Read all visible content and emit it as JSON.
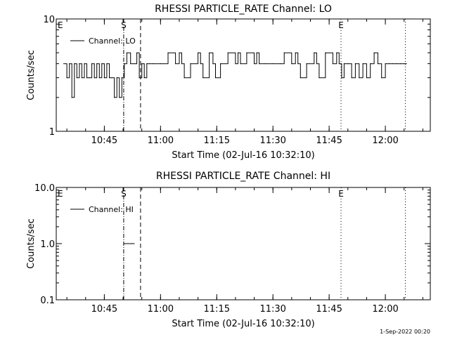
{
  "footer": {
    "stamp": "1-Sep-2022 00:20"
  },
  "chart_data": [
    {
      "type": "line",
      "title": "RHESSI PARTICLE_RATE Channel: LO",
      "xlabel": "Start Time (02-Jul-16 10:32:10)",
      "ylabel": "Counts/sec",
      "y_scale": "log",
      "ylim": [
        1,
        10
      ],
      "ytick_labels": [
        "1",
        "10"
      ],
      "xlim": [
        "10:32:10",
        "12:12:00"
      ],
      "xtick_labels": [
        "10:45",
        "11:00",
        "11:15",
        "11:30",
        "11:45",
        "12:00"
      ],
      "legend": {
        "entries": [
          "Channel: LO"
        ],
        "placement": "top-left"
      },
      "markers": [
        {
          "label": "E",
          "time": "10:32:10",
          "style": "none"
        },
        {
          "label": "S",
          "time": "10:50:10",
          "style": "dash-dot"
        },
        {
          "label": "",
          "time": "10:54:40",
          "style": "dashed"
        },
        {
          "label": "E",
          "time": "11:48:10",
          "style": "dotted"
        },
        {
          "label": "",
          "time": "12:05:20",
          "style": "dotted"
        }
      ],
      "series": [
        {
          "name": "Channel: LO",
          "x": [
            "10:34:10",
            "10:35:00",
            "10:35:40",
            "10:36:20",
            "10:37:00",
            "10:37:40",
            "10:38:20",
            "10:39:00",
            "10:39:40",
            "10:40:20",
            "10:41:00",
            "10:41:40",
            "10:42:20",
            "10:43:00",
            "10:43:40",
            "10:44:20",
            "10:45:00",
            "10:45:40",
            "10:46:20",
            "10:47:00",
            "10:47:40",
            "10:48:20",
            "10:49:00",
            "10:49:40",
            "10:50:20",
            "10:51:00",
            "10:52:00",
            "10:53:00",
            "10:53:40",
            "10:54:20",
            "10:55:00",
            "10:55:40",
            "10:56:20",
            "10:57:00",
            "10:58:00",
            "11:00:00",
            "11:02:00",
            "11:04:00",
            "11:05:00",
            "11:05:40",
            "11:06:20",
            "11:08:00",
            "11:10:00",
            "11:10:40",
            "11:11:20",
            "11:13:00",
            "11:14:00",
            "11:14:40",
            "11:16:00",
            "11:18:00",
            "11:20:00",
            "11:20:40",
            "11:21:20",
            "11:23:00",
            "11:25:00",
            "11:25:40",
            "11:26:20",
            "11:28:00",
            "11:30:00",
            "11:32:00",
            "11:33:00",
            "11:35:00",
            "11:36:00",
            "11:36:40",
            "11:37:20",
            "11:39:00",
            "11:41:00",
            "11:41:40",
            "11:42:20",
            "11:44:00",
            "11:46:00",
            "11:47:00",
            "11:47:40",
            "11:48:20",
            "11:49:00",
            "11:50:00",
            "11:51:00",
            "11:52:00",
            "11:53:00",
            "11:54:00",
            "11:55:00",
            "11:56:00",
            "11:57:00",
            "11:58:00",
            "11:59:00",
            "12:00:00",
            "12:01:00",
            "12:02:00",
            "12:03:00",
            "12:04:00",
            "12:05:00"
          ],
          "y": [
            4,
            3,
            4,
            2,
            4,
            3,
            4,
            3,
            4,
            3,
            3,
            4,
            3,
            4,
            3,
            4,
            3,
            4,
            3,
            3,
            2,
            3,
            2,
            3,
            4,
            5,
            4,
            4,
            5,
            3,
            4,
            3,
            4,
            4,
            4,
            4,
            5,
            4,
            5,
            4,
            3,
            4,
            5,
            4,
            3,
            5,
            4,
            3,
            4,
            5,
            4,
            5,
            4,
            5,
            4,
            5,
            4,
            4,
            4,
            4,
            5,
            4,
            5,
            4,
            3,
            4,
            5,
            4,
            3,
            5,
            4,
            5,
            4,
            3,
            4,
            4,
            3,
            4,
            3,
            4,
            3,
            4,
            5,
            4,
            3,
            4,
            4,
            4,
            4,
            4,
            4
          ]
        }
      ]
    },
    {
      "type": "line",
      "title": "RHESSI PARTICLE_RATE Channel: HI",
      "xlabel": "Start Time (02-Jul-16 10:32:10)",
      "ylabel": "Counts/sec",
      "y_scale": "log",
      "ylim": [
        0.1,
        10
      ],
      "ytick_labels": [
        "0.1",
        "1.0",
        "10.0"
      ],
      "xlim": [
        "10:32:10",
        "12:12:00"
      ],
      "xtick_labels": [
        "10:45",
        "11:00",
        "11:15",
        "11:30",
        "11:45",
        "12:00"
      ],
      "legend": {
        "entries": [
          "Channel: HI"
        ],
        "placement": "top-left"
      },
      "markers": [
        {
          "label": "E",
          "time": "10:32:10",
          "style": "none"
        },
        {
          "label": "S",
          "time": "10:50:10",
          "style": "dash-dot"
        },
        {
          "label": "",
          "time": "10:54:40",
          "style": "dashed"
        },
        {
          "label": "E",
          "time": "11:48:10",
          "style": "dotted"
        },
        {
          "label": "",
          "time": "12:05:20",
          "style": "dotted"
        }
      ],
      "series": [
        {
          "name": "Channel: HI",
          "x": [
            "10:50:20",
            "10:52:20"
          ],
          "y": [
            1.0,
            1.0
          ]
        }
      ]
    }
  ]
}
